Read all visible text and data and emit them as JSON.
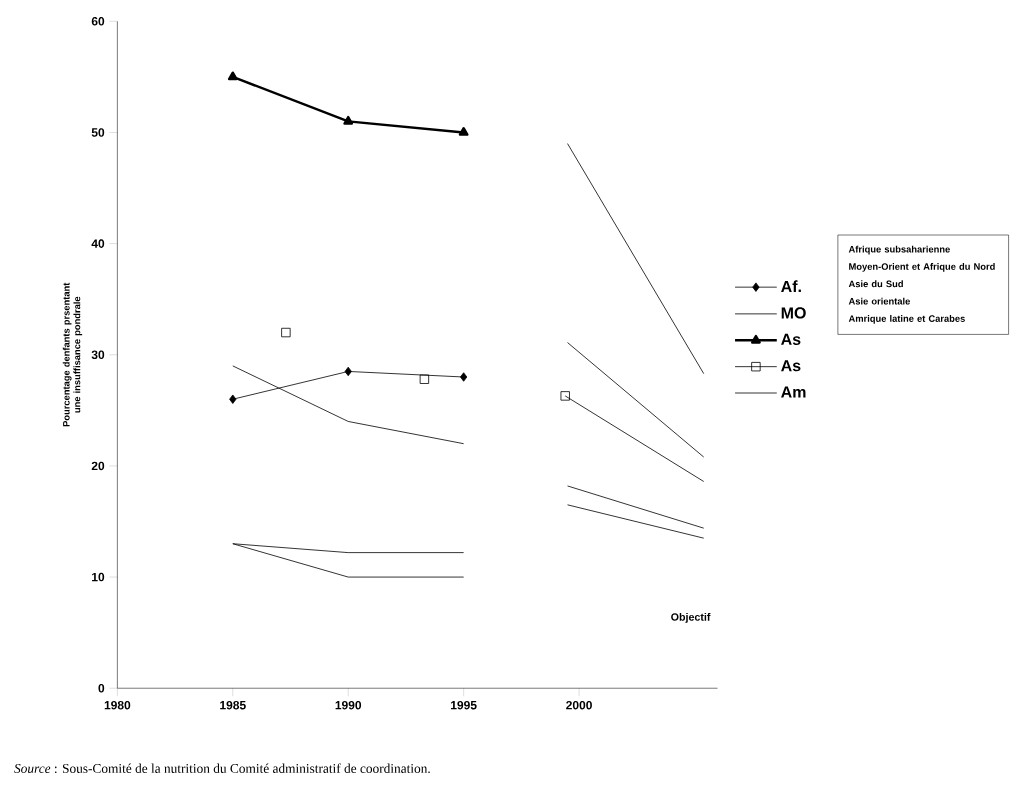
{
  "chart_data": {
    "type": "line",
    "ylabel": "Pourcentage denfants prsentant une insuffisance pondrale",
    "x": [
      1985,
      1990,
      1995
    ],
    "series": [
      {
        "name": "Af.",
        "color": "#000000",
        "marker": "diamond",
        "values": [
          26,
          28.5,
          28
        ]
      },
      {
        "name": "MO",
        "color": "#000000",
        "values": [
          29,
          24,
          22
        ]
      },
      {
        "name": "As",
        "color": "#000000",
        "marker": "triangle",
        "values": [
          55,
          51,
          50
        ]
      },
      {
        "name": "As",
        "color": "#000000",
        "type": "scatter",
        "marker": "square",
        "x": [
          1987.3,
          1993.3,
          1999.4
        ],
        "values": [
          32,
          27.8,
          26.3
        ]
      },
      {
        "name": "Am",
        "color": "#000000",
        "values": [
          13,
          10,
          10
        ]
      },
      {
        "color": "#000000",
        "values": [
          13,
          12.2,
          12.2
        ]
      },
      {
        "color": "#000000",
        "x": [
          1999.5,
          2005.4
        ],
        "values": [
          49,
          28.3
        ]
      },
      {
        "color": "#000000",
        "x": [
          1999.5,
          2005.4
        ],
        "values": [
          31.1,
          20.8
        ]
      },
      {
        "color": "#000000",
        "x": [
          1999.4,
          2005.4
        ],
        "values": [
          26.3,
          18.6
        ]
      },
      {
        "color": "#000000",
        "x": [
          1999.5,
          2005.4
        ],
        "values": [
          18.2,
          14.4
        ]
      },
      {
        "color": "#000000",
        "x": [
          1999.5,
          2005.4
        ],
        "values": [
          16.5,
          13.5
        ]
      }
    ],
    "xlim": [
      1980,
      2006
    ],
    "xticks": [
      1980,
      1985,
      1990,
      1995,
      2000
    ],
    "ylim": [
      0,
      60
    ],
    "yticks": [
      0,
      10,
      20,
      30,
      40,
      50,
      60
    ],
    "legend": "right",
    "annotations": [
      "*Source* : Sous-Comité de la nutrition du Comité administratif de coordination.",
      "Objectif",
      "Afrique subsaharienne",
      "Moyen-Orient et Afrique du Nord",
      "Asie du Sud",
      "Asie orientale",
      "Amrique latine et Carabes"
    ]
  }
}
